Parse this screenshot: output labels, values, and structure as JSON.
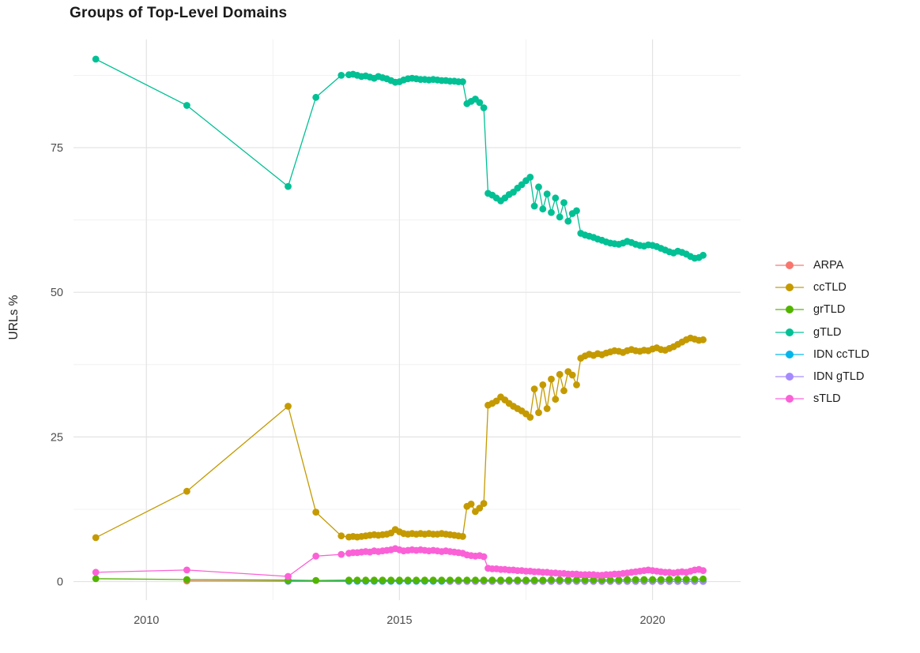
{
  "chart_data": {
    "type": "line",
    "title": "Groups of Top-Level Domains",
    "xlabel": "",
    "ylabel": "URLs %",
    "xlim": [
      2008.56,
      2021.74
    ],
    "ylim": [
      -3.2,
      93.7
    ],
    "x_ticks": [
      2010,
      2015,
      2020
    ],
    "y_ticks": [
      0,
      25,
      50,
      75
    ],
    "x_minor": [
      2012.5,
      2017.5
    ],
    "y_minor": [
      12.5,
      37.5,
      62.5,
      87.5
    ],
    "grid": true,
    "grid_major_color": "#e3e3e3",
    "grid_minor_color": "#f1f1f1",
    "axis_text_color": "#4d4d4d",
    "legend_position": "right",
    "draw_order": [
      "ARPA",
      "IDN ccTLD",
      "IDN gTLD",
      "ccTLD",
      "grTLD",
      "gTLD",
      "sTLD"
    ],
    "series": [
      {
        "name": "ARPA",
        "color": "#F8766D",
        "sparse": [
          [
            2010.8,
            0.1
          ],
          [
            2012.8,
            0.05
          ]
        ],
        "dense": {
          "start": 2014.0,
          "step": 0.16667,
          "values": [
            0.05,
            0.05,
            0.05,
            0.05,
            0.05,
            0.05,
            0.05,
            0.05,
            0.05,
            0.05,
            0.05,
            0.05,
            0.05,
            0.05,
            0.05,
            0.05,
            0.05,
            0.05,
            0.05,
            0.05,
            0.05,
            0.05,
            0.05,
            0.05,
            0.05,
            0.05,
            0.05,
            0.05,
            0.05,
            0.05,
            0.05,
            0.05,
            0.05,
            0.05,
            0.05,
            0.05,
            0.05,
            0.05,
            0.05,
            0.05,
            0.05,
            0.05,
            0.05
          ]
        }
      },
      {
        "name": "ccTLD",
        "color": "#C49A00",
        "sparse": [
          [
            2009.0,
            7.6
          ],
          [
            2010.8,
            15.6
          ],
          [
            2012.8,
            30.3
          ],
          [
            2013.35,
            12.0
          ],
          [
            2013.85,
            7.9
          ]
        ],
        "dense": {
          "start": 2014.0,
          "step": 0.08333,
          "values": [
            7.7,
            7.8,
            7.7,
            7.8,
            7.9,
            8.0,
            8.1,
            8.0,
            8.1,
            8.2,
            8.4,
            9.0,
            8.6,
            8.3,
            8.2,
            8.3,
            8.2,
            8.3,
            8.2,
            8.3,
            8.2,
            8.2,
            8.3,
            8.2,
            8.1,
            8.0,
            7.9,
            7.8,
            13.0,
            13.4,
            12.1,
            12.7,
            13.5,
            30.5,
            30.8,
            31.2,
            31.9,
            31.4,
            30.8,
            30.3,
            29.9,
            29.5,
            29.0,
            28.4,
            33.3,
            29.2,
            34.0,
            29.9,
            35.0,
            31.5,
            35.8,
            33.0,
            36.3,
            35.7,
            34.0,
            38.6,
            39.0,
            39.3,
            39.1,
            39.4,
            39.2,
            39.5,
            39.7,
            39.9,
            39.8,
            39.6,
            39.9,
            40.1,
            39.9,
            39.8,
            40.0,
            39.9,
            40.2,
            40.4,
            40.1,
            40.0,
            40.3,
            40.6,
            41.0,
            41.4,
            41.8,
            42.1,
            41.9,
            41.7,
            41.8
          ]
        }
      },
      {
        "name": "grTLD",
        "color": "#53B400",
        "sparse": [
          [
            2009.0,
            0.5
          ],
          [
            2010.8,
            0.35
          ],
          [
            2012.8,
            0.25
          ],
          [
            2013.35,
            0.2
          ]
        ],
        "dense": {
          "start": 2014.0,
          "step": 0.16667,
          "values": [
            0.25,
            0.25,
            0.25,
            0.25,
            0.25,
            0.25,
            0.25,
            0.25,
            0.25,
            0.25,
            0.25,
            0.25,
            0.25,
            0.25,
            0.25,
            0.25,
            0.25,
            0.25,
            0.25,
            0.25,
            0.25,
            0.25,
            0.25,
            0.25,
            0.3,
            0.3,
            0.3,
            0.3,
            0.3,
            0.3,
            0.3,
            0.3,
            0.3,
            0.35,
            0.35,
            0.35,
            0.35,
            0.35,
            0.4,
            0.4,
            0.4,
            0.4,
            0.45
          ]
        }
      },
      {
        "name": "gTLD",
        "color": "#00C094",
        "sparse": [
          [
            2009.0,
            90.3
          ],
          [
            2010.8,
            82.3
          ],
          [
            2012.8,
            68.3
          ],
          [
            2013.35,
            83.7
          ],
          [
            2013.85,
            87.5
          ]
        ],
        "dense": {
          "start": 2014.0,
          "step": 0.08333,
          "values": [
            87.6,
            87.7,
            87.5,
            87.3,
            87.4,
            87.2,
            87.0,
            87.3,
            87.1,
            86.9,
            86.6,
            86.3,
            86.4,
            86.7,
            86.9,
            87.0,
            86.9,
            86.8,
            86.8,
            86.7,
            86.8,
            86.7,
            86.6,
            86.6,
            86.5,
            86.5,
            86.4,
            86.4,
            82.6,
            83.0,
            83.4,
            82.8,
            81.9,
            67.1,
            66.8,
            66.3,
            65.8,
            66.3,
            66.9,
            67.3,
            68.0,
            68.6,
            69.3,
            69.9,
            64.9,
            68.2,
            64.4,
            67.0,
            63.8,
            66.3,
            63.0,
            65.5,
            62.3,
            63.6,
            64.1,
            60.2,
            59.9,
            59.7,
            59.5,
            59.2,
            59.0,
            58.7,
            58.5,
            58.4,
            58.3,
            58.5,
            58.8,
            58.6,
            58.3,
            58.1,
            58.0,
            58.2,
            58.1,
            57.9,
            57.6,
            57.3,
            57.0,
            56.8,
            57.1,
            56.9,
            56.6,
            56.2,
            55.9,
            56.0,
            56.4
          ]
        }
      },
      {
        "name": "IDN ccTLD",
        "color": "#00B6EB",
        "sparse": [
          [
            2012.8,
            0.1
          ]
        ],
        "dense": {
          "start": 2014.0,
          "step": 0.16667,
          "values": [
            0.08,
            0.08,
            0.08,
            0.08,
            0.08,
            0.08,
            0.08,
            0.08,
            0.08,
            0.08,
            0.08,
            0.08,
            0.08,
            0.08,
            0.08,
            0.08,
            0.08,
            0.08,
            0.08,
            0.08,
            0.08,
            0.08,
            0.08,
            0.08,
            0.08,
            0.08,
            0.08,
            0.08,
            0.08,
            0.08,
            0.08,
            0.08,
            0.08,
            0.08,
            0.08,
            0.08,
            0.08,
            0.08,
            0.08,
            0.08,
            0.08,
            0.08,
            0.08
          ]
        }
      },
      {
        "name": "IDN gTLD",
        "color": "#A58AFF",
        "sparse": [],
        "dense": {
          "start": 2016.0,
          "step": 0.16667,
          "values": [
            0.02,
            0.02,
            0.02,
            0.02,
            0.02,
            0.02,
            0.02,
            0.02,
            0.02,
            0.02,
            0.02,
            0.02,
            0.02,
            0.02,
            0.02,
            0.02,
            0.02,
            0.02,
            0.02,
            0.02,
            0.02,
            0.02,
            0.02,
            0.02,
            0.02,
            0.02,
            0.02,
            0.02,
            0.02,
            0.02,
            0.02
          ]
        }
      },
      {
        "name": "sTLD",
        "color": "#FB61D7",
        "sparse": [
          [
            2009.0,
            1.6
          ],
          [
            2010.8,
            2.0
          ],
          [
            2012.8,
            0.9
          ],
          [
            2013.35,
            4.4
          ],
          [
            2013.85,
            4.7
          ]
        ],
        "dense": {
          "start": 2014.0,
          "step": 0.08333,
          "values": [
            4.9,
            5.0,
            5.0,
            5.1,
            5.2,
            5.1,
            5.3,
            5.2,
            5.3,
            5.4,
            5.5,
            5.7,
            5.5,
            5.3,
            5.4,
            5.5,
            5.4,
            5.5,
            5.4,
            5.3,
            5.4,
            5.3,
            5.2,
            5.3,
            5.2,
            5.1,
            5.0,
            4.9,
            4.6,
            4.5,
            4.4,
            4.5,
            4.3,
            2.3,
            2.2,
            2.2,
            2.1,
            2.1,
            2.0,
            2.0,
            1.9,
            1.9,
            1.8,
            1.8,
            1.7,
            1.7,
            1.6,
            1.6,
            1.5,
            1.5,
            1.4,
            1.4,
            1.3,
            1.3,
            1.3,
            1.2,
            1.2,
            1.2,
            1.2,
            1.1,
            1.1,
            1.2,
            1.2,
            1.3,
            1.3,
            1.4,
            1.5,
            1.6,
            1.7,
            1.8,
            1.9,
            2.0,
            1.9,
            1.8,
            1.7,
            1.6,
            1.6,
            1.5,
            1.6,
            1.7,
            1.6,
            1.8,
            2.0,
            2.1,
            1.9
          ]
        }
      }
    ]
  }
}
